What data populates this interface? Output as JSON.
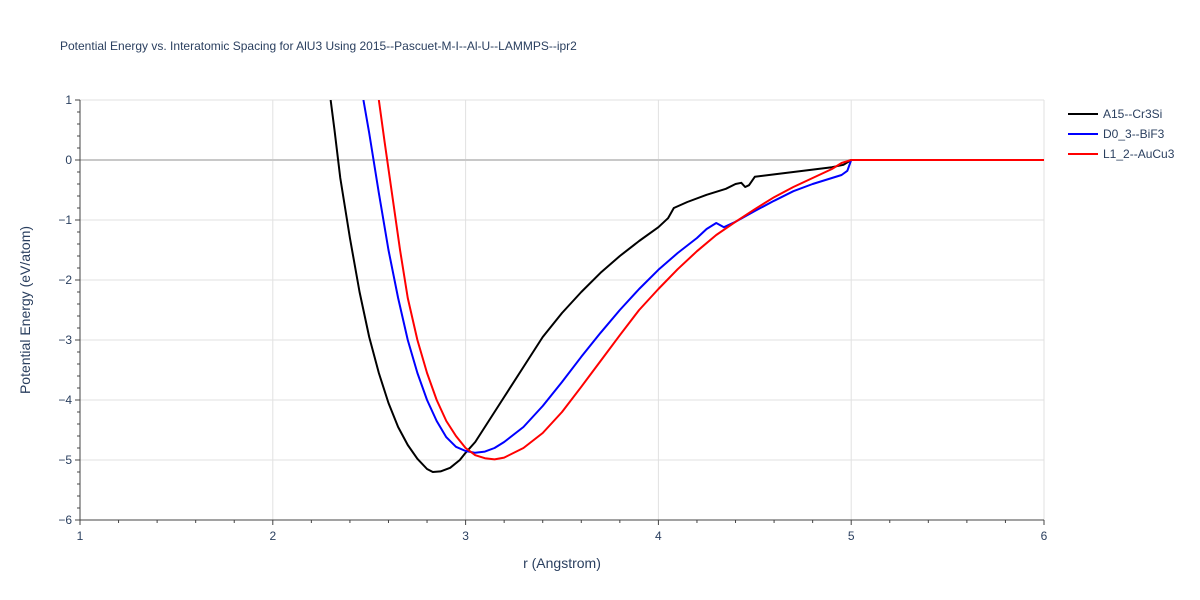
{
  "chart_data": {
    "type": "line",
    "title": "Potential Energy vs. Interatomic Spacing for AlU3 Using 2015--Pascuet-M-I--Al-U--LAMMPS--ipr2",
    "xlabel": "r (Angstrom)",
    "ylabel": "Potential Energy (eV/atom)",
    "xlim": [
      1,
      6
    ],
    "ylim": [
      -6,
      1
    ],
    "x_ticks": [
      1,
      2,
      3,
      4,
      5,
      6
    ],
    "x_tick_labels": [
      "1",
      "2",
      "3",
      "4",
      "5",
      "6"
    ],
    "y_ticks": [
      1,
      0,
      -1,
      -2,
      -3,
      -4,
      -5,
      -6
    ],
    "y_tick_labels": [
      "1",
      "0",
      "−1",
      "−2",
      "−3",
      "−4",
      "−5",
      "−6"
    ],
    "grid": true,
    "legend_position": "top-right",
    "series": [
      {
        "name": "A15--Cr3Si",
        "color": "#000000",
        "points": [
          [
            2.3,
            1.0
          ],
          [
            2.32,
            0.5
          ],
          [
            2.35,
            -0.3
          ],
          [
            2.4,
            -1.3
          ],
          [
            2.45,
            -2.2
          ],
          [
            2.5,
            -2.95
          ],
          [
            2.55,
            -3.55
          ],
          [
            2.6,
            -4.05
          ],
          [
            2.65,
            -4.45
          ],
          [
            2.7,
            -4.75
          ],
          [
            2.75,
            -4.98
          ],
          [
            2.8,
            -5.15
          ],
          [
            2.83,
            -5.2
          ],
          [
            2.87,
            -5.19
          ],
          [
            2.92,
            -5.13
          ],
          [
            2.97,
            -5.0
          ],
          [
            3.0,
            -4.88
          ],
          [
            3.05,
            -4.7
          ],
          [
            3.1,
            -4.45
          ],
          [
            3.2,
            -3.95
          ],
          [
            3.3,
            -3.45
          ],
          [
            3.4,
            -2.95
          ],
          [
            3.5,
            -2.55
          ],
          [
            3.6,
            -2.2
          ],
          [
            3.7,
            -1.88
          ],
          [
            3.8,
            -1.6
          ],
          [
            3.9,
            -1.35
          ],
          [
            4.0,
            -1.12
          ],
          [
            4.05,
            -0.97
          ],
          [
            4.08,
            -0.8
          ],
          [
            4.15,
            -0.7
          ],
          [
            4.25,
            -0.58
          ],
          [
            4.35,
            -0.48
          ],
          [
            4.4,
            -0.4
          ],
          [
            4.43,
            -0.38
          ],
          [
            4.45,
            -0.45
          ],
          [
            4.47,
            -0.42
          ],
          [
            4.5,
            -0.28
          ],
          [
            4.6,
            -0.24
          ],
          [
            4.7,
            -0.2
          ],
          [
            4.8,
            -0.16
          ],
          [
            4.9,
            -0.12
          ],
          [
            4.96,
            -0.08
          ],
          [
            5.0,
            0.0
          ],
          [
            6.0,
            0.0
          ]
        ]
      },
      {
        "name": "D0_3--BiF3",
        "color": "#0000ff",
        "points": [
          [
            2.47,
            1.0
          ],
          [
            2.5,
            0.45
          ],
          [
            2.55,
            -0.55
          ],
          [
            2.6,
            -1.5
          ],
          [
            2.65,
            -2.3
          ],
          [
            2.7,
            -3.0
          ],
          [
            2.75,
            -3.55
          ],
          [
            2.8,
            -4.0
          ],
          [
            2.85,
            -4.35
          ],
          [
            2.9,
            -4.62
          ],
          [
            2.95,
            -4.78
          ],
          [
            3.0,
            -4.85
          ],
          [
            3.05,
            -4.88
          ],
          [
            3.1,
            -4.86
          ],
          [
            3.15,
            -4.8
          ],
          [
            3.2,
            -4.7
          ],
          [
            3.3,
            -4.45
          ],
          [
            3.4,
            -4.1
          ],
          [
            3.5,
            -3.7
          ],
          [
            3.6,
            -3.28
          ],
          [
            3.7,
            -2.88
          ],
          [
            3.8,
            -2.5
          ],
          [
            3.9,
            -2.15
          ],
          [
            4.0,
            -1.83
          ],
          [
            4.1,
            -1.55
          ],
          [
            4.2,
            -1.3
          ],
          [
            4.25,
            -1.15
          ],
          [
            4.3,
            -1.05
          ],
          [
            4.34,
            -1.12
          ],
          [
            4.4,
            -1.03
          ],
          [
            4.5,
            -0.85
          ],
          [
            4.6,
            -0.68
          ],
          [
            4.7,
            -0.52
          ],
          [
            4.8,
            -0.4
          ],
          [
            4.9,
            -0.3
          ],
          [
            4.95,
            -0.25
          ],
          [
            4.98,
            -0.18
          ],
          [
            5.0,
            0.0
          ],
          [
            6.0,
            0.0
          ]
        ]
      },
      {
        "name": "L1_2--AuCu3",
        "color": "#ff0000",
        "points": [
          [
            2.55,
            1.0
          ],
          [
            2.58,
            0.3
          ],
          [
            2.62,
            -0.6
          ],
          [
            2.66,
            -1.5
          ],
          [
            2.7,
            -2.3
          ],
          [
            2.75,
            -3.0
          ],
          [
            2.8,
            -3.55
          ],
          [
            2.85,
            -4.0
          ],
          [
            2.9,
            -4.35
          ],
          [
            2.95,
            -4.6
          ],
          [
            3.0,
            -4.8
          ],
          [
            3.05,
            -4.92
          ],
          [
            3.1,
            -4.97
          ],
          [
            3.15,
            -4.99
          ],
          [
            3.2,
            -4.96
          ],
          [
            3.3,
            -4.8
          ],
          [
            3.4,
            -4.55
          ],
          [
            3.5,
            -4.2
          ],
          [
            3.6,
            -3.78
          ],
          [
            3.7,
            -3.35
          ],
          [
            3.8,
            -2.92
          ],
          [
            3.9,
            -2.5
          ],
          [
            4.0,
            -2.15
          ],
          [
            4.1,
            -1.82
          ],
          [
            4.2,
            -1.52
          ],
          [
            4.3,
            -1.25
          ],
          [
            4.4,
            -1.03
          ],
          [
            4.5,
            -0.82
          ],
          [
            4.6,
            -0.62
          ],
          [
            4.7,
            -0.45
          ],
          [
            4.8,
            -0.3
          ],
          [
            4.9,
            -0.15
          ],
          [
            4.95,
            -0.05
          ],
          [
            5.0,
            0.0
          ],
          [
            6.0,
            0.0
          ]
        ]
      }
    ]
  }
}
